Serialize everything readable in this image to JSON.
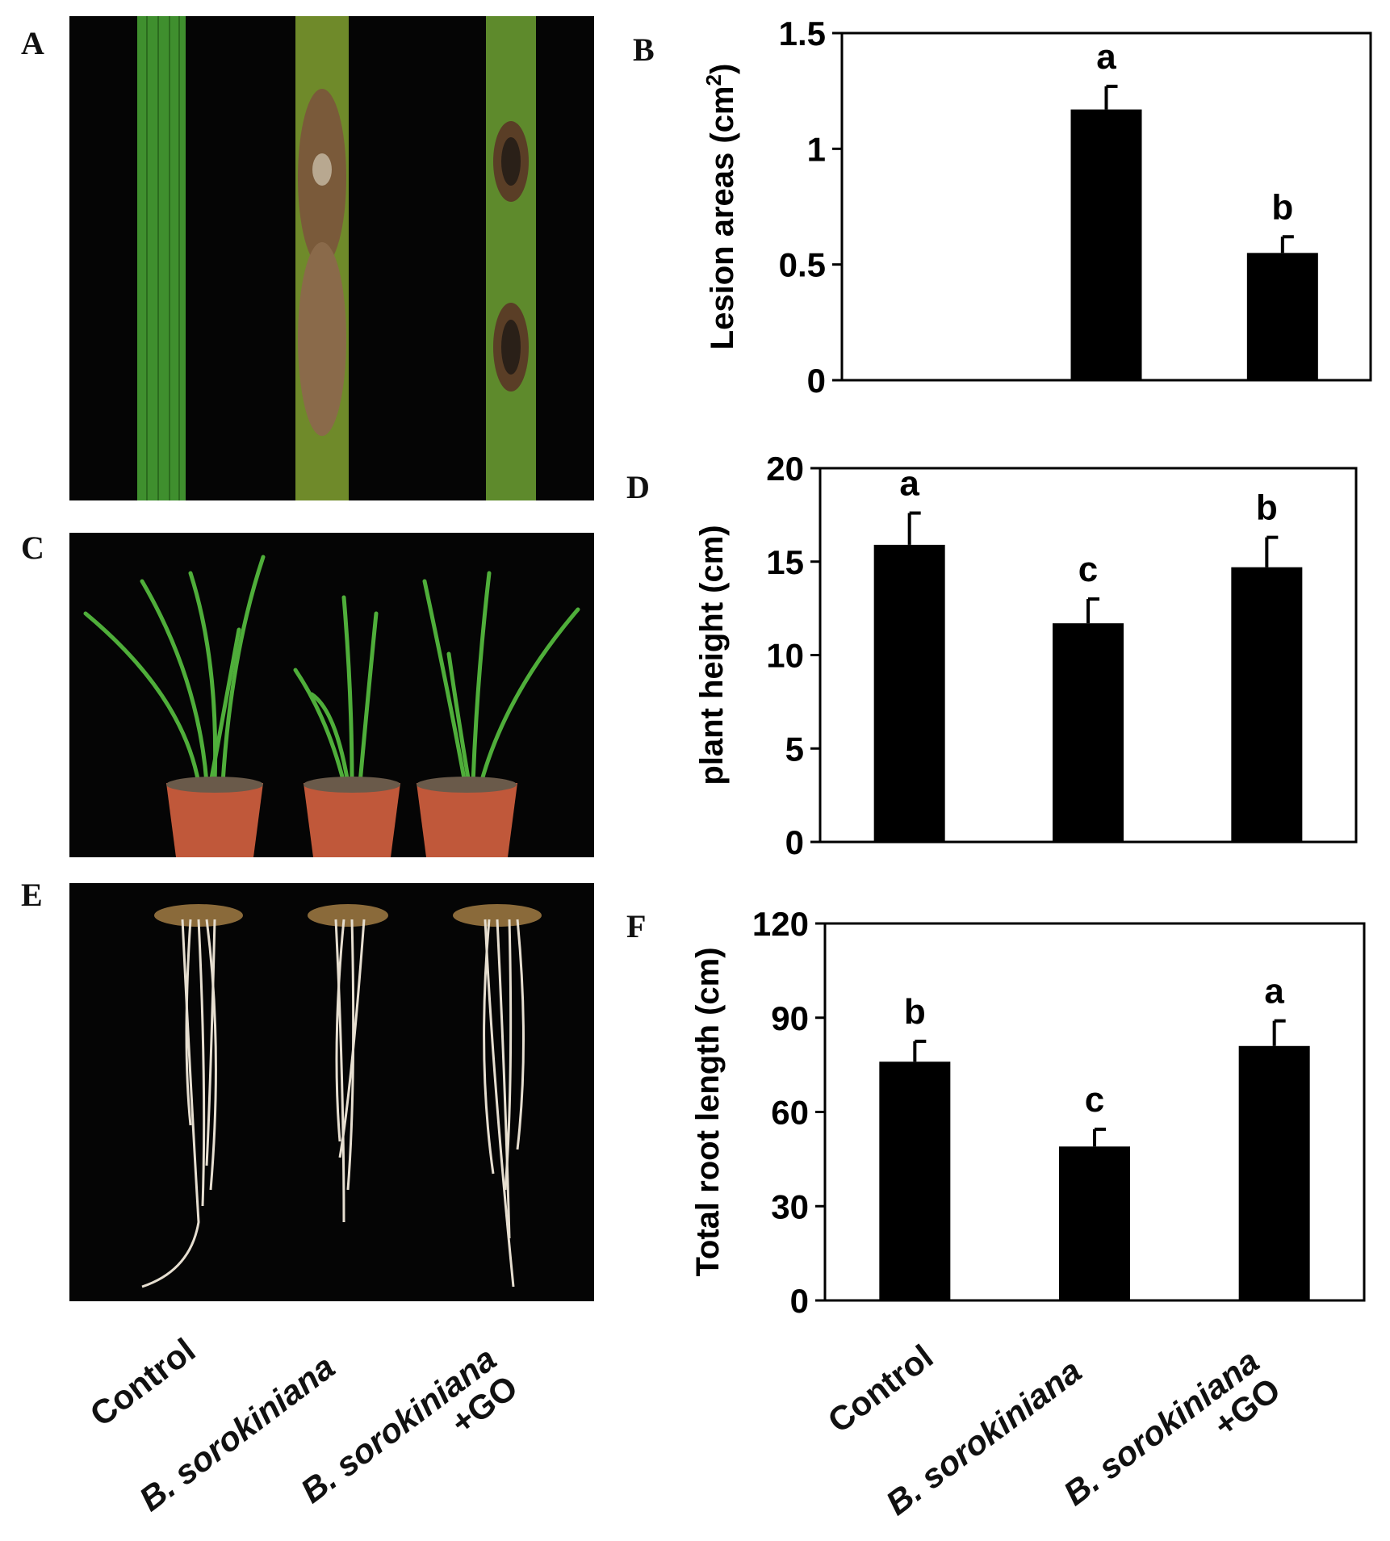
{
  "panels": {
    "A": "A",
    "B": "B",
    "C": "C",
    "D": "D",
    "E": "E",
    "F": "F"
  },
  "categories": [
    {
      "italic": "B. sorokiniana",
      "plain": ""
    },
    {
      "italic": "B. sorokiniana",
      "plain": "+GO"
    }
  ],
  "control_label": "Control",
  "colors": {
    "bar": "#000000",
    "leaf_green": "#3f8f2e",
    "lesion": "#7a5a3a",
    "pot": "#c0583a",
    "root": "#e6ded0"
  },
  "chart_data": [
    {
      "type": "bar",
      "panel": "B",
      "categories": [
        "Control",
        "B. sorokiniana",
        "B. sorokiniana +GO"
      ],
      "values": [
        0,
        1.17,
        0.55
      ],
      "errors": [
        0,
        0.1,
        0.07
      ],
      "letters": [
        "",
        "a",
        "b"
      ],
      "ylabel_main": "Lesion areas (cm",
      "ylabel_sup": "2",
      "ylabel_end": ")",
      "ylim": [
        0,
        1.5
      ],
      "yticks": [
        0,
        0.5,
        1,
        1.5
      ],
      "ytick_labels": [
        "0",
        "0.5",
        "1",
        "1.5"
      ]
    },
    {
      "type": "bar",
      "panel": "D",
      "categories": [
        "Control",
        "B. sorokiniana",
        "B. sorokiniana +GO"
      ],
      "values": [
        15.9,
        11.7,
        14.7
      ],
      "errors": [
        1.7,
        1.3,
        1.6
      ],
      "letters": [
        "a",
        "c",
        "b"
      ],
      "ylabel_main": "plant height (cm)",
      "ylabel_sup": "",
      "ylabel_end": "",
      "ylim": [
        0,
        20
      ],
      "yticks": [
        0,
        5,
        10,
        15,
        20
      ],
      "ytick_labels": [
        "0",
        "5",
        "10",
        "15",
        "20"
      ]
    },
    {
      "type": "bar",
      "panel": "F",
      "categories": [
        "Control",
        "B. sorokiniana",
        "B. sorokiniana +GO"
      ],
      "values": [
        76,
        49,
        81
      ],
      "errors": [
        6.5,
        5.5,
        8.0
      ],
      "letters": [
        "b",
        "c",
        "a"
      ],
      "ylabel_main": "Total root length (cm)",
      "ylabel_sup": "",
      "ylabel_end": "",
      "ylim": [
        0,
        120
      ],
      "yticks": [
        0,
        30,
        60,
        90,
        120
      ],
      "ytick_labels": [
        "0",
        "30",
        "60",
        "90",
        "120"
      ]
    }
  ]
}
